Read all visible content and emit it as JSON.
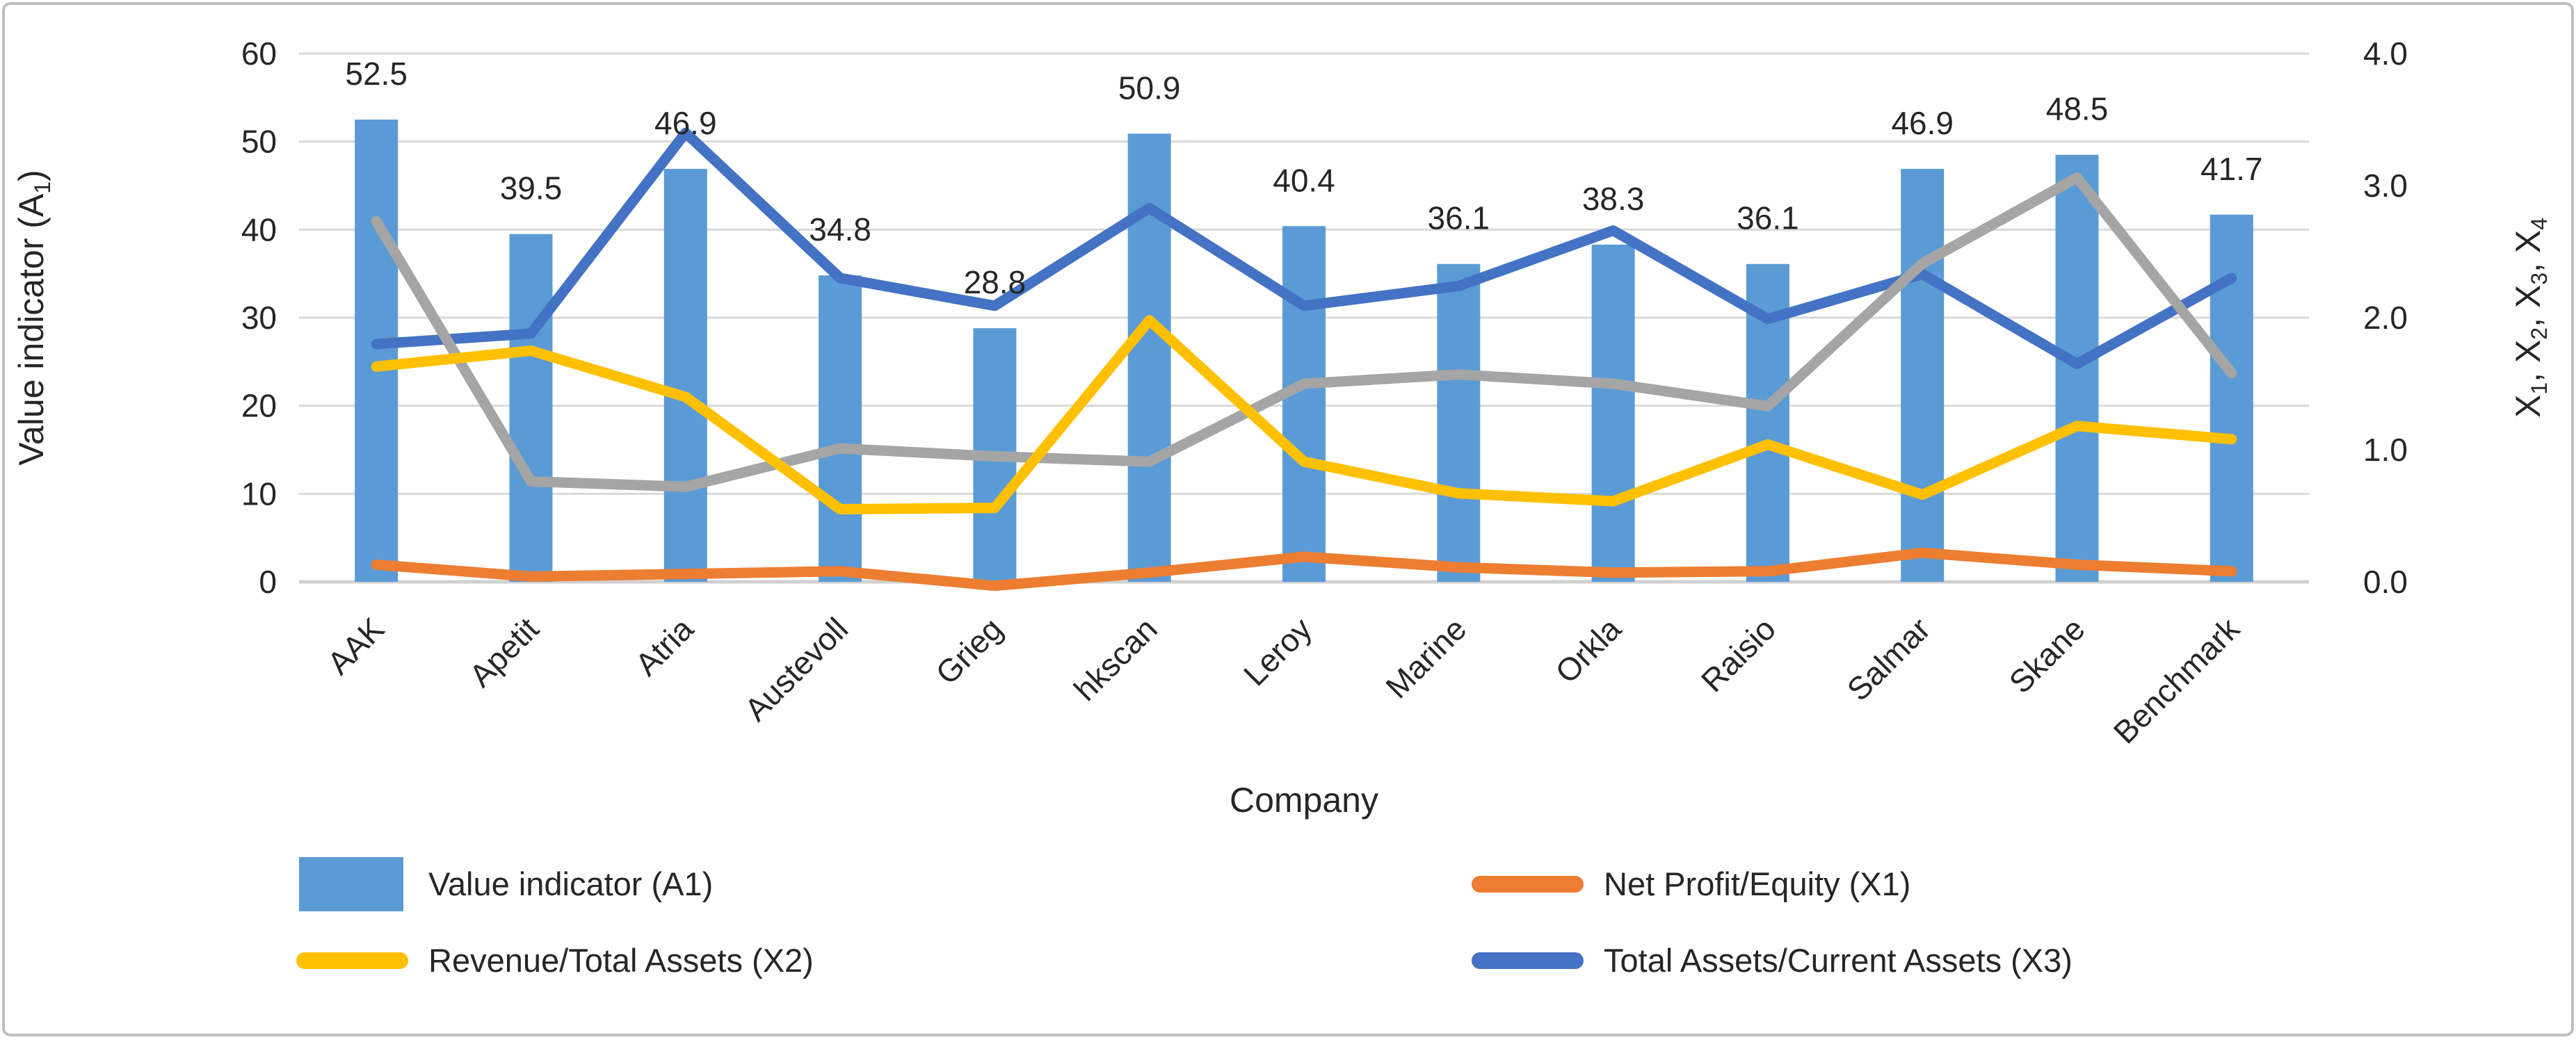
{
  "chart_data": {
    "type": "combo-bar-line",
    "title": "",
    "categories": [
      "AAK",
      "Apetit",
      "Atria",
      "Austevoll",
      "Grieg",
      "hkscan",
      "Leroy",
      "Marine",
      "Orkla",
      "Raisio",
      "Salmar",
      "Skane",
      "Benchmark"
    ],
    "x_axis": {
      "title": "Company"
    },
    "left_axis": {
      "title_rich": "Value indicator (A~1~)",
      "min": 0,
      "max": 60,
      "step": 10,
      "ticks": [
        "0",
        "10",
        "20",
        "30",
        "40",
        "50",
        "60"
      ]
    },
    "right_axis": {
      "title_rich": "X~1~, X~2~, X~3~, X~4~",
      "min": 0.0,
      "max": 4.0,
      "step": 1.0,
      "ticks": [
        "0.0",
        "1.0",
        "2.0",
        "3.0",
        "4.0"
      ]
    },
    "grid": true,
    "legend_position": "bottom-two-columns",
    "series": [
      {
        "key": "A1",
        "name": "Value indicator (A1)",
        "type": "bar",
        "axis": "left",
        "color": "#5B9BD5",
        "in_legend": true,
        "values": [
          52.5,
          39.5,
          46.9,
          34.8,
          28.8,
          50.9,
          40.4,
          36.1,
          38.3,
          36.1,
          46.9,
          48.5,
          41.7
        ],
        "data_labels": [
          "52.5",
          "39.5",
          "46.9",
          "34.8",
          "28.8",
          "50.9",
          "40.4",
          "36.1",
          "38.3",
          "36.1",
          "46.9",
          "48.5",
          "41.7"
        ]
      },
      {
        "key": "X1",
        "name": "Net Profit/Equity (X1)",
        "type": "line",
        "axis": "right",
        "color": "#ED7D31",
        "in_legend": true,
        "values": [
          0.13,
          0.04,
          0.06,
          0.08,
          -0.03,
          0.07,
          0.19,
          0.11,
          0.07,
          0.08,
          0.22,
          0.13,
          0.08
        ]
      },
      {
        "key": "X2",
        "name": "Revenue/Total Assets (X2)",
        "type": "line",
        "axis": "right",
        "color": "#FFC000",
        "in_legend": true,
        "values": [
          1.63,
          1.75,
          1.4,
          0.55,
          0.56,
          1.98,
          0.91,
          0.67,
          0.61,
          1.04,
          0.66,
          1.18,
          1.08
        ]
      },
      {
        "key": "X3",
        "name": "Total Assets/Current Assets (X3)",
        "type": "line",
        "axis": "right",
        "color": "#4472C4",
        "in_legend": true,
        "values": [
          1.8,
          1.88,
          3.4,
          2.3,
          2.09,
          2.83,
          2.09,
          2.24,
          2.66,
          1.99,
          2.33,
          1.65,
          2.3
        ]
      },
      {
        "key": "X4",
        "name": "X4",
        "type": "line",
        "axis": "right",
        "color": "#A5A5A5",
        "in_legend": false,
        "values": [
          2.73,
          0.76,
          0.72,
          1.01,
          0.95,
          0.91,
          1.5,
          1.57,
          1.5,
          1.33,
          2.41,
          3.06,
          1.58
        ]
      }
    ],
    "legend_order": [
      "A1",
      "X1",
      "X2",
      "X3"
    ],
    "colors": {
      "bar_fill": "#5B9BD5",
      "line_x1": "#ED7D31",
      "line_x2": "#FFC000",
      "line_x3": "#4472C4",
      "line_x4": "#A5A5A5",
      "gridline": "#D9D9D9",
      "axis_line": "#D0D0D0",
      "border": "#BFBFBF",
      "text": "#262626"
    }
  }
}
